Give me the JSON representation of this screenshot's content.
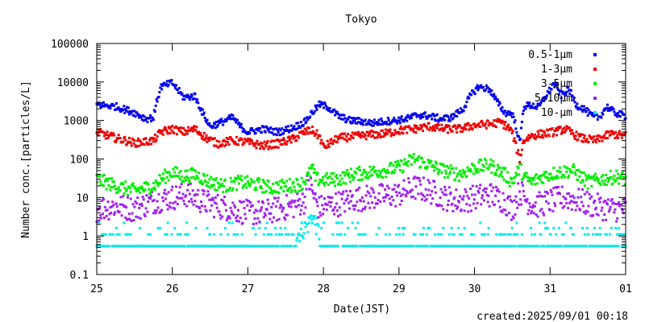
{
  "chart_data": {
    "type": "scatter",
    "title": "Tokyo",
    "xlabel": "Date(JST)",
    "ylabel": "Number conc.[particles/L]",
    "footer": "created:2025/09/01 00:18",
    "yscale": "log",
    "ylim": [
      0.1,
      100000
    ],
    "xlim": [
      0,
      7
    ],
    "x_unit": "days from 2025/08/25 00:00 JST",
    "x_ticks": [
      0,
      1,
      2,
      3,
      4,
      5,
      6,
      7
    ],
    "x_tick_labels": [
      "25",
      "26",
      "27",
      "28",
      "29",
      "30",
      "31",
      "01"
    ],
    "y_ticks": [
      0.1,
      1,
      10,
      100,
      1000,
      10000,
      100000
    ],
    "y_tick_labels": [
      "0.1",
      "1",
      "10",
      "100",
      "1000",
      "10000",
      "100000"
    ],
    "grid": false,
    "legend_position": "top-right",
    "series": [
      {
        "name": "0.5-1μm",
        "color": "#0000ee",
        "x": [
          0,
          0.25,
          0.5,
          0.65,
          0.75,
          0.8,
          0.85,
          1.0,
          1.15,
          1.3,
          1.4,
          1.5,
          1.65,
          1.8,
          1.9,
          2.0,
          2.2,
          2.4,
          2.6,
          2.75,
          2.85,
          2.95,
          3.05,
          3.2,
          3.35,
          3.5,
          3.65,
          3.8,
          3.95,
          4.1,
          4.25,
          4.4,
          4.55,
          4.7,
          4.85,
          4.95,
          5.05,
          5.2,
          5.3,
          5.4,
          5.5,
          5.55,
          5.6,
          5.65,
          5.75,
          5.85,
          5.95,
          6.05,
          6.15,
          6.25,
          6.35,
          6.45,
          6.55,
          6.65,
          6.75,
          6.85,
          7.0
        ],
        "y": [
          2600,
          2300,
          1600,
          1100,
          1200,
          3500,
          7500,
          9500,
          4000,
          4300,
          1600,
          700,
          900,
          1200,
          700,
          500,
          600,
          500,
          650,
          900,
          1600,
          2600,
          2300,
          1300,
          1000,
          950,
          850,
          950,
          1000,
          1100,
          1400,
          1300,
          1100,
          1200,
          2000,
          4500,
          7500,
          6500,
          3000,
          1600,
          1500,
          700,
          250,
          2300,
          2500,
          2200,
          4500,
          9000,
          4500,
          6500,
          2500,
          2000,
          1300,
          1200,
          2300,
          1600,
          1300
        ]
      },
      {
        "name": "1-3μm",
        "color": "#ee0000",
        "x": [
          0,
          0.25,
          0.5,
          0.75,
          0.85,
          1.0,
          1.15,
          1.3,
          1.45,
          1.6,
          1.8,
          2.0,
          2.2,
          2.4,
          2.6,
          2.75,
          2.85,
          2.95,
          3.0,
          3.05,
          3.2,
          3.4,
          3.6,
          3.8,
          4.0,
          4.2,
          4.4,
          4.6,
          4.8,
          5.0,
          5.2,
          5.35,
          5.45,
          5.5,
          5.55,
          5.6,
          5.65,
          5.75,
          5.9,
          6.05,
          6.2,
          6.4,
          6.6,
          6.8,
          7.0
        ],
        "y": [
          500,
          350,
          260,
          300,
          500,
          600,
          500,
          600,
          350,
          250,
          300,
          270,
          220,
          250,
          330,
          500,
          550,
          380,
          200,
          230,
          350,
          380,
          420,
          450,
          550,
          600,
          700,
          600,
          600,
          750,
          800,
          900,
          650,
          500,
          200,
          100,
          300,
          400,
          450,
          500,
          600,
          350,
          300,
          450,
          400
        ]
      },
      {
        "name": "3-5μm",
        "color": "#00ee00",
        "x": [
          0,
          0.25,
          0.5,
          0.75,
          0.9,
          1.0,
          1.15,
          1.3,
          1.5,
          1.7,
          1.9,
          2.1,
          2.3,
          2.5,
          2.7,
          2.8,
          2.85,
          2.9,
          3.0,
          3.2,
          3.4,
          3.6,
          3.8,
          4.0,
          4.2,
          4.4,
          4.6,
          4.8,
          5.0,
          5.2,
          5.4,
          5.5,
          5.6,
          5.65,
          5.75,
          5.9,
          6.1,
          6.3,
          6.5,
          6.7,
          6.9,
          7.0
        ],
        "y": [
          30,
          20,
          15,
          20,
          35,
          45,
          35,
          40,
          25,
          20,
          25,
          22,
          18,
          20,
          22,
          35,
          60,
          30,
          28,
          30,
          40,
          45,
          50,
          60,
          100,
          70,
          50,
          40,
          60,
          70,
          40,
          25,
          60,
          35,
          25,
          35,
          45,
          50,
          25,
          30,
          35,
          30
        ]
      },
      {
        "name": "5-10μm",
        "color": "#a020f0",
        "x": [
          0,
          0.25,
          0.5,
          0.75,
          1.0,
          1.2,
          1.4,
          1.6,
          1.8,
          2.0,
          2.2,
          2.4,
          2.6,
          2.75,
          2.8,
          2.85,
          2.9,
          2.95,
          3.0,
          3.2,
          3.4,
          3.6,
          3.8,
          4.0,
          4.2,
          4.4,
          4.6,
          4.8,
          5.0,
          5.2,
          5.4,
          5.5,
          5.6,
          5.7,
          5.8,
          6.0,
          6.2,
          6.4,
          6.6,
          6.8,
          7.0
        ],
        "y": [
          5,
          6,
          5,
          8,
          10,
          12,
          8,
          6,
          5,
          4,
          4,
          5,
          6,
          8,
          30,
          15,
          8,
          5,
          6,
          7,
          9,
          10,
          11,
          12,
          18,
          15,
          10,
          8,
          10,
          12,
          8,
          5,
          15,
          8,
          6,
          8,
          10,
          8,
          6,
          5,
          5
        ]
      },
      {
        "name": "10-μm",
        "color": "#00eeee",
        "x": [
          0,
          0.5,
          1.0,
          1.5,
          2.0,
          2.5,
          2.8,
          2.85,
          2.9,
          3.0,
          3.5,
          4.0,
          4.5,
          5.0,
          5.5,
          6.0,
          6.5,
          7.0
        ],
        "y": [
          0.55,
          0.55,
          0.55,
          0.55,
          0.55,
          0.55,
          2.0,
          3.5,
          2.0,
          0.55,
          0.55,
          0.55,
          0.55,
          0.55,
          0.55,
          0.55,
          0.55,
          0.55
        ],
        "levels": [
          0.55,
          1.1,
          1.6,
          2.2,
          2.7,
          3.3
        ]
      }
    ]
  }
}
